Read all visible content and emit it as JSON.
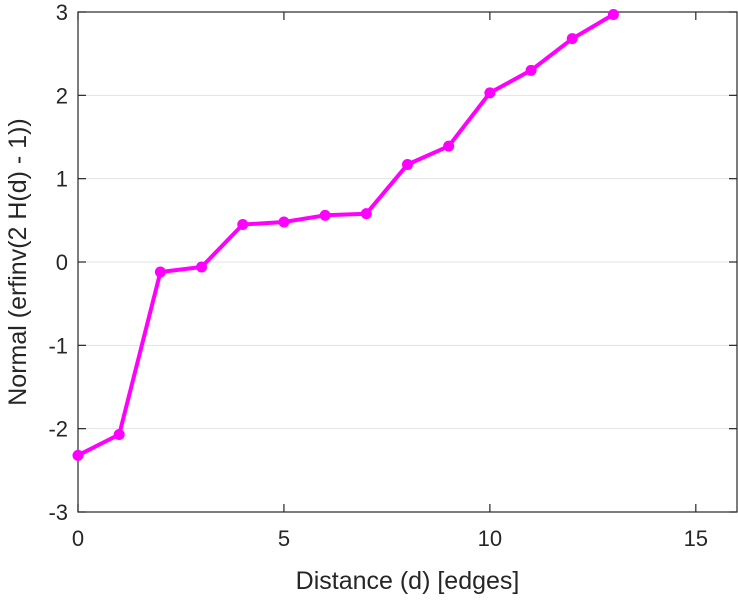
{
  "chart_data": {
    "type": "line",
    "title": "",
    "xlabel": "Distance (d) [edges]",
    "ylabel": "Normal (erfinv(2 H(d) - 1))",
    "xlim": [
      0,
      16
    ],
    "ylim": [
      -3,
      3
    ],
    "xticks": [
      0,
      5,
      10,
      15
    ],
    "yticks": [
      -3,
      -2,
      -1,
      0,
      1,
      2,
      3
    ],
    "grid": "horizontal",
    "series": [
      {
        "color": "#ff00ff",
        "marker": "circle",
        "x": [
          0,
          1,
          2,
          3,
          4,
          5,
          6,
          7,
          8,
          9,
          10,
          11,
          12,
          13
        ],
        "y": [
          -2.32,
          -2.07,
          -0.12,
          -0.06,
          0.45,
          0.48,
          0.56,
          0.58,
          1.17,
          1.39,
          2.03,
          2.3,
          2.68,
          2.97
        ]
      }
    ]
  }
}
